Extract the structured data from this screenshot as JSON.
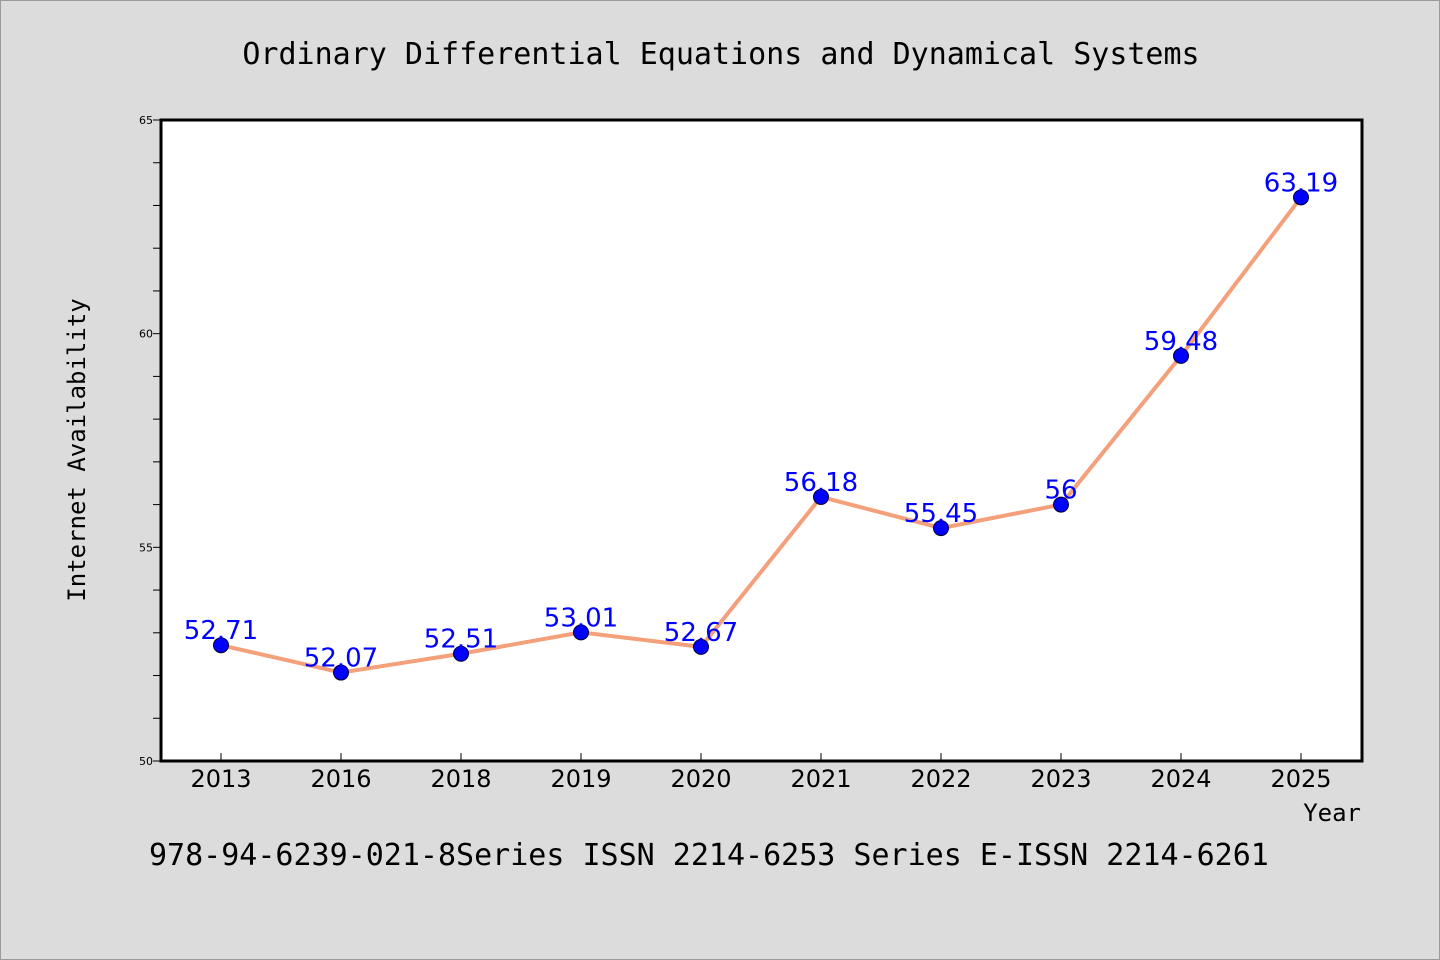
{
  "chart_data": {
    "type": "line",
    "title": "Ordinary Differential Equations and Dynamical Systems",
    "xlabel": "Year",
    "ylabel": "Internet Availability",
    "categories": [
      "2013",
      "2016",
      "2018",
      "2019",
      "2020",
      "2021",
      "2022",
      "2023",
      "2024",
      "2025"
    ],
    "series": [
      {
        "values": [
          52.71,
          52.07,
          52.51,
          53.01,
          52.67,
          56.18,
          55.45,
          56,
          59.48,
          63.19
        ],
        "data_labels": [
          "52.71",
          "52.07",
          "52.51",
          "53.01",
          "52.67",
          "56.18",
          "55.45",
          "56",
          "59.48",
          "63.19"
        ],
        "line_color": "#f4a07a",
        "marker_color": "#0000ff"
      }
    ],
    "ylim": [
      50,
      65
    ],
    "yticks": [
      "50",
      "55",
      "60",
      "65"
    ],
    "grid": false,
    "legend": "none"
  },
  "footer": "978-94-6239-021-8Series ISSN 2214-6253 Series E-ISSN 2214-6261",
  "colors": {
    "background": "#dcdcdc",
    "plot_background": "#ffffff",
    "line": "#f4a07a",
    "marker": "#0000ff",
    "data_label": "#0000ff"
  }
}
